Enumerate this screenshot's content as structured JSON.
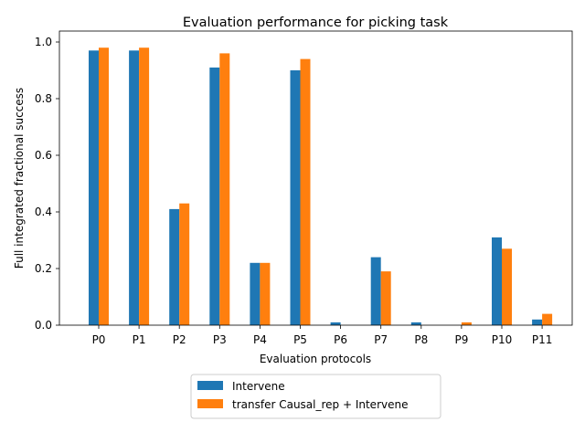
{
  "chart_data": {
    "type": "bar",
    "title": "Evaluation performance for picking task",
    "xlabel": "Evaluation protocols",
    "ylabel": "Full integrated fractional success",
    "categories": [
      "P0",
      "P1",
      "P2",
      "P3",
      "P4",
      "P5",
      "P6",
      "P7",
      "P8",
      "P9",
      "P10",
      "P11"
    ],
    "series": [
      {
        "name": "Intervene",
        "color": "#1f77b4",
        "values": [
          0.97,
          0.97,
          0.41,
          0.91,
          0.22,
          0.9,
          0.01,
          0.24,
          0.01,
          0.0,
          0.31,
          0.02
        ]
      },
      {
        "name": "transfer Causal_rep + Intervene",
        "color": "#ff7f0e",
        "values": [
          0.98,
          0.98,
          0.43,
          0.96,
          0.22,
          0.94,
          0.0,
          0.19,
          0.0,
          0.01,
          0.27,
          0.04
        ]
      }
    ],
    "ylim": [
      0,
      1.0
    ],
    "yticks": [
      "0.0",
      "0.2",
      "0.4",
      "0.6",
      "0.8",
      "1.0"
    ],
    "grid": false,
    "legend_position": "below-center"
  }
}
